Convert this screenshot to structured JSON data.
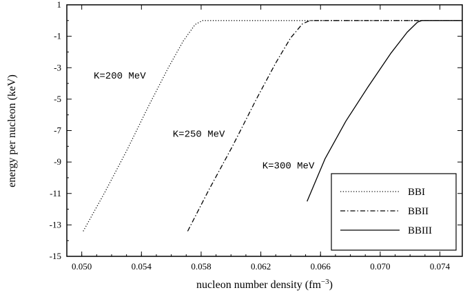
{
  "chart_data": {
    "type": "line",
    "title": "",
    "xlabel": "nucleon number density (fm",
    "xlabel_sup": "−3",
    "xlabel_end": ")",
    "ylabel": "energy per nucleon (keV)",
    "xlim": [
      0.049,
      0.0755
    ],
    "ylim": [
      -15,
      1
    ],
    "x_ticks": [
      0.05,
      0.054,
      0.058,
      0.062,
      0.066,
      0.07,
      0.074
    ],
    "x_tick_labels": [
      "0.050",
      "0.054",
      "0.058",
      "0.062",
      "0.066",
      "0.070",
      "0.074"
    ],
    "y_ticks": [
      1,
      -1,
      -3,
      -5,
      -7,
      -9,
      -11,
      -13,
      -15
    ],
    "y_tick_labels": [
      "1",
      "-1",
      "-3",
      "-5",
      "-7",
      "-9",
      "-11",
      "-13",
      "-15"
    ],
    "grid": false,
    "legend_position": "bottom-right",
    "series": [
      {
        "name": "BBI",
        "dash": "dotted",
        "x": [
          0.0501,
          0.0515,
          0.053,
          0.0545,
          0.0558,
          0.0568,
          0.0576,
          0.0581,
          0.0589,
          0.0755
        ],
        "y": [
          -13.4,
          -11.0,
          -8.3,
          -5.4,
          -3.0,
          -1.3,
          -0.25,
          0.0,
          0.0,
          0.0
        ]
      },
      {
        "name": "BBII",
        "dash": "dashdot",
        "x": [
          0.0571,
          0.0585,
          0.0601,
          0.0617,
          0.063,
          0.064,
          0.0648,
          0.0653,
          0.066,
          0.0755
        ],
        "y": [
          -13.4,
          -10.8,
          -8.0,
          -5.0,
          -2.7,
          -1.1,
          -0.2,
          0.0,
          0.0,
          0.0
        ]
      },
      {
        "name": "BBIII",
        "dash": "solid",
        "x": [
          0.0651,
          0.0663,
          0.0677,
          0.0692,
          0.0707,
          0.0718,
          0.0725,
          0.0728,
          0.0755
        ],
        "y": [
          -11.5,
          -8.8,
          -6.4,
          -4.2,
          -2.1,
          -0.75,
          -0.1,
          0.0,
          0.0
        ]
      }
    ],
    "annotations": [
      {
        "text": "K=200 MeV",
        "x": 0.0508,
        "y": -3.7
      },
      {
        "text": "K=250 MeV",
        "x": 0.0561,
        "y": -7.4
      },
      {
        "text": "K=300 MeV",
        "x": 0.0621,
        "y": -9.4
      }
    ]
  }
}
